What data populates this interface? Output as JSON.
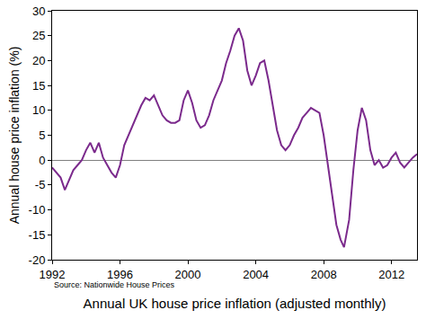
{
  "chart_data": {
    "type": "line",
    "x_label": "Annual UK house price inflation (adjusted monthly)",
    "y_label": "Annual house price inflation (%)",
    "annotations": [
      "Source: Nationwide House Prices"
    ],
    "color": "#7b2a8c",
    "grid": false,
    "x": [
      1992.0,
      1992.25,
      1992.5,
      1992.75,
      1993.0,
      1993.25,
      1993.5,
      1993.75,
      1994.0,
      1994.25,
      1994.5,
      1994.75,
      1995.0,
      1995.25,
      1995.5,
      1995.75,
      1996.0,
      1996.25,
      1996.5,
      1996.75,
      1997.0,
      1997.25,
      1997.5,
      1997.75,
      1998.0,
      1998.25,
      1998.5,
      1998.75,
      1999.0,
      1999.25,
      1999.5,
      1999.75,
      2000.0,
      2000.25,
      2000.5,
      2000.75,
      2001.0,
      2001.25,
      2001.5,
      2001.75,
      2002.0,
      2002.25,
      2002.5,
      2002.75,
      2003.0,
      2003.25,
      2003.5,
      2003.75,
      2004.0,
      2004.25,
      2004.5,
      2004.75,
      2005.0,
      2005.25,
      2005.5,
      2005.75,
      2006.0,
      2006.25,
      2006.5,
      2006.75,
      2007.0,
      2007.25,
      2007.5,
      2007.75,
      2008.0,
      2008.25,
      2008.5,
      2008.75,
      2009.0,
      2009.2,
      2009.5,
      2009.75,
      2010.0,
      2010.25,
      2010.5,
      2010.75,
      2011.0,
      2011.25,
      2011.5,
      2011.75,
      2012.0,
      2012.25,
      2012.5,
      2012.75,
      2013.0,
      2013.25,
      2013.5
    ],
    "values": [
      -1.5,
      -2.5,
      -3.5,
      -6,
      -4,
      -2,
      -1,
      0,
      2,
      3.5,
      1.5,
      3.5,
      0.5,
      -1,
      -2.5,
      -3.5,
      -1,
      3,
      5,
      7,
      9,
      11,
      12.5,
      12,
      13,
      11,
      9,
      8,
      7.5,
      7.5,
      8,
      12,
      14,
      11.5,
      8,
      6.5,
      7,
      9,
      12,
      14,
      16,
      19.5,
      22,
      25,
      26.5,
      24,
      18,
      15,
      17,
      19.5,
      20,
      16,
      11,
      6,
      3,
      2,
      3,
      5,
      6.5,
      8.5,
      9.5,
      10.5,
      10,
      9.5,
      5,
      -1,
      -7,
      -13,
      -16,
      -17.5,
      -12,
      -2,
      6,
      10.5,
      8,
      2,
      -1,
      0,
      -1.5,
      -1,
      0.5,
      1.5,
      -0.5,
      -1.5,
      -0.5,
      0.5,
      1.2
    ],
    "xlim": [
      1992,
      2013.5
    ],
    "xticks": [
      1992,
      1996,
      2000,
      2004,
      2008,
      2012
    ],
    "ylim": [
      -20,
      30
    ],
    "yticks": [
      -20,
      -15,
      -10,
      -5,
      0,
      5,
      10,
      15,
      20,
      25,
      30
    ]
  }
}
